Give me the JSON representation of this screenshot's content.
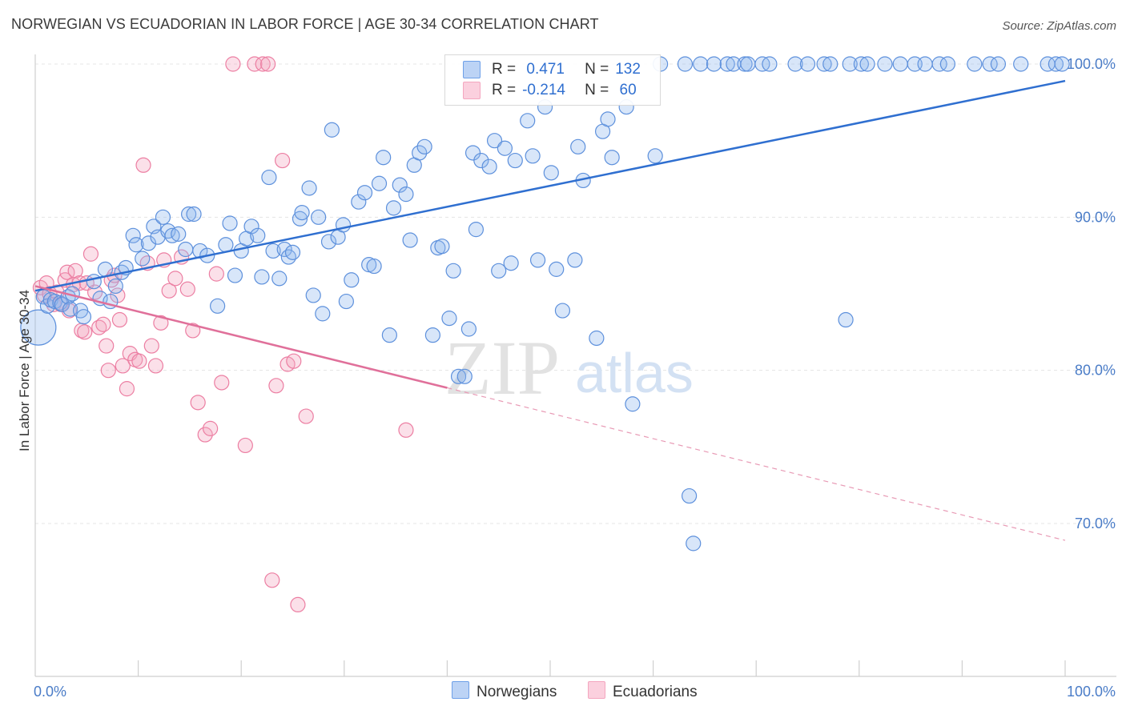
{
  "header": {
    "title": "NORWEGIAN VS ECUADORIAN IN LABOR FORCE | AGE 30-34 CORRELATION CHART",
    "source": "Source: ZipAtlas.com"
  },
  "watermark": {
    "zip": "ZIP",
    "atlas": "atlas"
  },
  "legend": {
    "rows": [
      {
        "r_label": "R =",
        "r_value": " 0.471",
        "n_label": "N =",
        "n_value": "132",
        "color": "#6ea0e8"
      },
      {
        "r_label": "R =",
        "r_value": "-0.214",
        "n_label": "N =",
        "n_value": " 60",
        "color": "#f4a6bf"
      }
    ]
  },
  "bottom_legend": {
    "norwegians": "Norwegians",
    "ecuadorians": "Ecuadorians"
  },
  "chart_data": {
    "type": "scatter",
    "title": "NORWEGIAN VS ECUADORIAN IN LABOR FORCE | AGE 30-34 CORRELATION CHART",
    "xlabel": "",
    "ylabel": "In Labor Force | Age 30-34",
    "xlim": [
      0,
      100
    ],
    "ylim": [
      60.5,
      101.5
    ],
    "x_tick_labels": [
      "0.0%",
      "100.0%"
    ],
    "y_ticks": [
      70,
      80,
      90,
      100
    ],
    "y_tick_labels": [
      "70.0%",
      "80.0%",
      "90.0%",
      "100.0%"
    ],
    "grid": true,
    "legend_position": "top-center",
    "series": [
      {
        "name": "Norwegians",
        "color": "#6ea0e8",
        "trend": {
          "x0": 0,
          "y0": 85.2,
          "x1": 100,
          "y1": 98.9,
          "dashed_from": null
        },
        "points": [
          [
            0.3,
            82.8
          ],
          [
            0.8,
            84.8
          ],
          [
            1.2,
            84.2
          ],
          [
            1.5,
            84.6
          ],
          [
            1.9,
            84.5
          ],
          [
            2.4,
            84.4
          ],
          [
            2.6,
            84.3
          ],
          [
            3.2,
            84.8
          ],
          [
            3.4,
            84.0
          ],
          [
            3.6,
            85.0
          ],
          [
            4.4,
            83.9
          ],
          [
            4.7,
            83.5
          ],
          [
            5.7,
            85.8
          ],
          [
            6.3,
            84.7
          ],
          [
            6.8,
            86.6
          ],
          [
            7.3,
            84.5
          ],
          [
            7.8,
            85.5
          ],
          [
            8.4,
            86.4
          ],
          [
            8.8,
            86.7
          ],
          [
            9.5,
            88.8
          ],
          [
            9.8,
            88.2
          ],
          [
            10.4,
            87.3
          ],
          [
            11.0,
            88.3
          ],
          [
            11.5,
            89.4
          ],
          [
            11.9,
            88.7
          ],
          [
            12.4,
            90.0
          ],
          [
            12.9,
            89.1
          ],
          [
            13.3,
            88.8
          ],
          [
            13.9,
            88.9
          ],
          [
            14.6,
            87.9
          ],
          [
            14.9,
            90.2
          ],
          [
            15.4,
            90.2
          ],
          [
            16.0,
            87.8
          ],
          [
            16.7,
            87.5
          ],
          [
            17.7,
            84.2
          ],
          [
            18.5,
            88.2
          ],
          [
            18.9,
            89.6
          ],
          [
            19.4,
            86.2
          ],
          [
            20.0,
            87.8
          ],
          [
            20.5,
            88.6
          ],
          [
            21.0,
            89.4
          ],
          [
            21.6,
            88.8
          ],
          [
            22.0,
            86.1
          ],
          [
            22.7,
            92.6
          ],
          [
            23.1,
            87.8
          ],
          [
            23.7,
            86.0
          ],
          [
            24.2,
            87.9
          ],
          [
            24.6,
            87.4
          ],
          [
            25.0,
            87.7
          ],
          [
            25.7,
            89.9
          ],
          [
            25.9,
            90.3
          ],
          [
            26.6,
            91.9
          ],
          [
            27.0,
            84.9
          ],
          [
            27.5,
            90.0
          ],
          [
            27.9,
            83.7
          ],
          [
            28.5,
            88.4
          ],
          [
            28.8,
            95.7
          ],
          [
            29.4,
            88.7
          ],
          [
            29.9,
            89.5
          ],
          [
            30.2,
            84.5
          ],
          [
            30.7,
            85.9
          ],
          [
            31.4,
            91.0
          ],
          [
            32.0,
            91.6
          ],
          [
            32.4,
            86.9
          ],
          [
            32.9,
            86.8
          ],
          [
            33.4,
            92.2
          ],
          [
            33.8,
            93.9
          ],
          [
            34.4,
            82.3
          ],
          [
            34.8,
            90.6
          ],
          [
            35.4,
            92.1
          ],
          [
            36.0,
            91.5
          ],
          [
            36.4,
            88.5
          ],
          [
            36.8,
            93.4
          ],
          [
            37.3,
            94.2
          ],
          [
            37.8,
            94.6
          ],
          [
            38.6,
            82.3
          ],
          [
            39.1,
            88.0
          ],
          [
            39.5,
            88.1
          ],
          [
            40.2,
            83.4
          ],
          [
            40.6,
            86.5
          ],
          [
            41.1,
            79.6
          ],
          [
            41.7,
            79.6
          ],
          [
            42.1,
            82.7
          ],
          [
            42.5,
            94.2
          ],
          [
            42.8,
            89.2
          ],
          [
            43.3,
            93.7
          ],
          [
            44.1,
            93.3
          ],
          [
            44.6,
            95.0
          ],
          [
            45.0,
            86.5
          ],
          [
            45.6,
            94.5
          ],
          [
            46.2,
            87.0
          ],
          [
            46.6,
            93.7
          ],
          [
            47.8,
            96.3
          ],
          [
            48.3,
            94.0
          ],
          [
            48.8,
            87.2
          ],
          [
            49.5,
            97.2
          ],
          [
            50.1,
            92.9
          ],
          [
            50.6,
            86.6
          ],
          [
            51.2,
            83.9
          ],
          [
            52.4,
            87.2
          ],
          [
            52.7,
            94.6
          ],
          [
            53.2,
            92.4
          ],
          [
            54.5,
            82.1
          ],
          [
            55.1,
            95.6
          ],
          [
            55.6,
            96.4
          ],
          [
            56.0,
            93.9
          ],
          [
            57.4,
            97.2
          ],
          [
            58.0,
            77.8
          ],
          [
            60.2,
            94.0
          ],
          [
            60.7,
            100.0
          ],
          [
            63.1,
            100.0
          ],
          [
            63.5,
            71.8
          ],
          [
            63.9,
            68.7
          ],
          [
            64.6,
            100.0
          ],
          [
            65.9,
            100.0
          ],
          [
            67.2,
            100.0
          ],
          [
            67.8,
            100.0
          ],
          [
            68.9,
            100.0
          ],
          [
            69.2,
            100.0
          ],
          [
            70.6,
            100.0
          ],
          [
            71.3,
            100.0
          ],
          [
            73.8,
            100.0
          ],
          [
            75.0,
            100.0
          ],
          [
            76.6,
            100.0
          ],
          [
            77.2,
            100.0
          ],
          [
            78.7,
            83.3
          ],
          [
            79.1,
            100.0
          ],
          [
            80.2,
            100.0
          ],
          [
            80.8,
            100.0
          ],
          [
            82.5,
            100.0
          ],
          [
            84.0,
            100.0
          ],
          [
            85.4,
            100.0
          ],
          [
            86.4,
            100.0
          ],
          [
            87.8,
            100.0
          ],
          [
            88.6,
            100.0
          ],
          [
            91.2,
            100.0
          ],
          [
            92.7,
            100.0
          ],
          [
            93.5,
            100.0
          ],
          [
            95.7,
            100.0
          ],
          [
            98.3,
            100.0
          ],
          [
            99.1,
            100.0
          ],
          [
            99.7,
            100.0
          ]
        ]
      },
      {
        "name": "Ecuadorians",
        "color": "#f4a6bf",
        "trend": {
          "x0": 0,
          "y0": 85.5,
          "x1": 100,
          "y1": 68.9,
          "dashed_from": 40
        },
        "points": [
          [
            0.5,
            85.4
          ],
          [
            0.9,
            84.9
          ],
          [
            1.1,
            85.7
          ],
          [
            1.4,
            85.0
          ],
          [
            1.8,
            84.3
          ],
          [
            2.1,
            85.1
          ],
          [
            2.5,
            84.3
          ],
          [
            2.9,
            85.9
          ],
          [
            3.1,
            86.4
          ],
          [
            3.3,
            83.9
          ],
          [
            3.7,
            85.6
          ],
          [
            3.9,
            86.5
          ],
          [
            4.3,
            85.7
          ],
          [
            4.5,
            82.6
          ],
          [
            4.8,
            82.5
          ],
          [
            5.0,
            85.7
          ],
          [
            5.4,
            87.6
          ],
          [
            5.8,
            85.1
          ],
          [
            6.2,
            82.8
          ],
          [
            6.6,
            83.0
          ],
          [
            6.9,
            81.6
          ],
          [
            7.1,
            80.0
          ],
          [
            7.4,
            85.9
          ],
          [
            7.7,
            86.2
          ],
          [
            8.0,
            84.9
          ],
          [
            8.2,
            83.3
          ],
          [
            8.5,
            80.3
          ],
          [
            8.9,
            78.8
          ],
          [
            9.2,
            81.1
          ],
          [
            9.7,
            80.7
          ],
          [
            10.1,
            80.6
          ],
          [
            10.5,
            93.4
          ],
          [
            10.9,
            87.0
          ],
          [
            11.3,
            81.6
          ],
          [
            11.7,
            80.3
          ],
          [
            12.2,
            83.1
          ],
          [
            12.5,
            87.2
          ],
          [
            13.0,
            85.2
          ],
          [
            13.6,
            86.0
          ],
          [
            14.2,
            87.4
          ],
          [
            14.8,
            85.3
          ],
          [
            15.3,
            82.6
          ],
          [
            15.8,
            77.9
          ],
          [
            16.5,
            75.8
          ],
          [
            17.0,
            76.2
          ],
          [
            17.6,
            86.3
          ],
          [
            18.1,
            79.2
          ],
          [
            19.2,
            100.0
          ],
          [
            20.4,
            75.1
          ],
          [
            21.3,
            100.0
          ],
          [
            22.1,
            100.0
          ],
          [
            22.6,
            100.0
          ],
          [
            23.0,
            66.3
          ],
          [
            23.4,
            79.0
          ],
          [
            24.0,
            93.7
          ],
          [
            24.5,
            80.4
          ],
          [
            25.1,
            80.6
          ],
          [
            25.5,
            64.7
          ],
          [
            26.3,
            77.0
          ],
          [
            36.0,
            76.1
          ]
        ]
      }
    ]
  }
}
